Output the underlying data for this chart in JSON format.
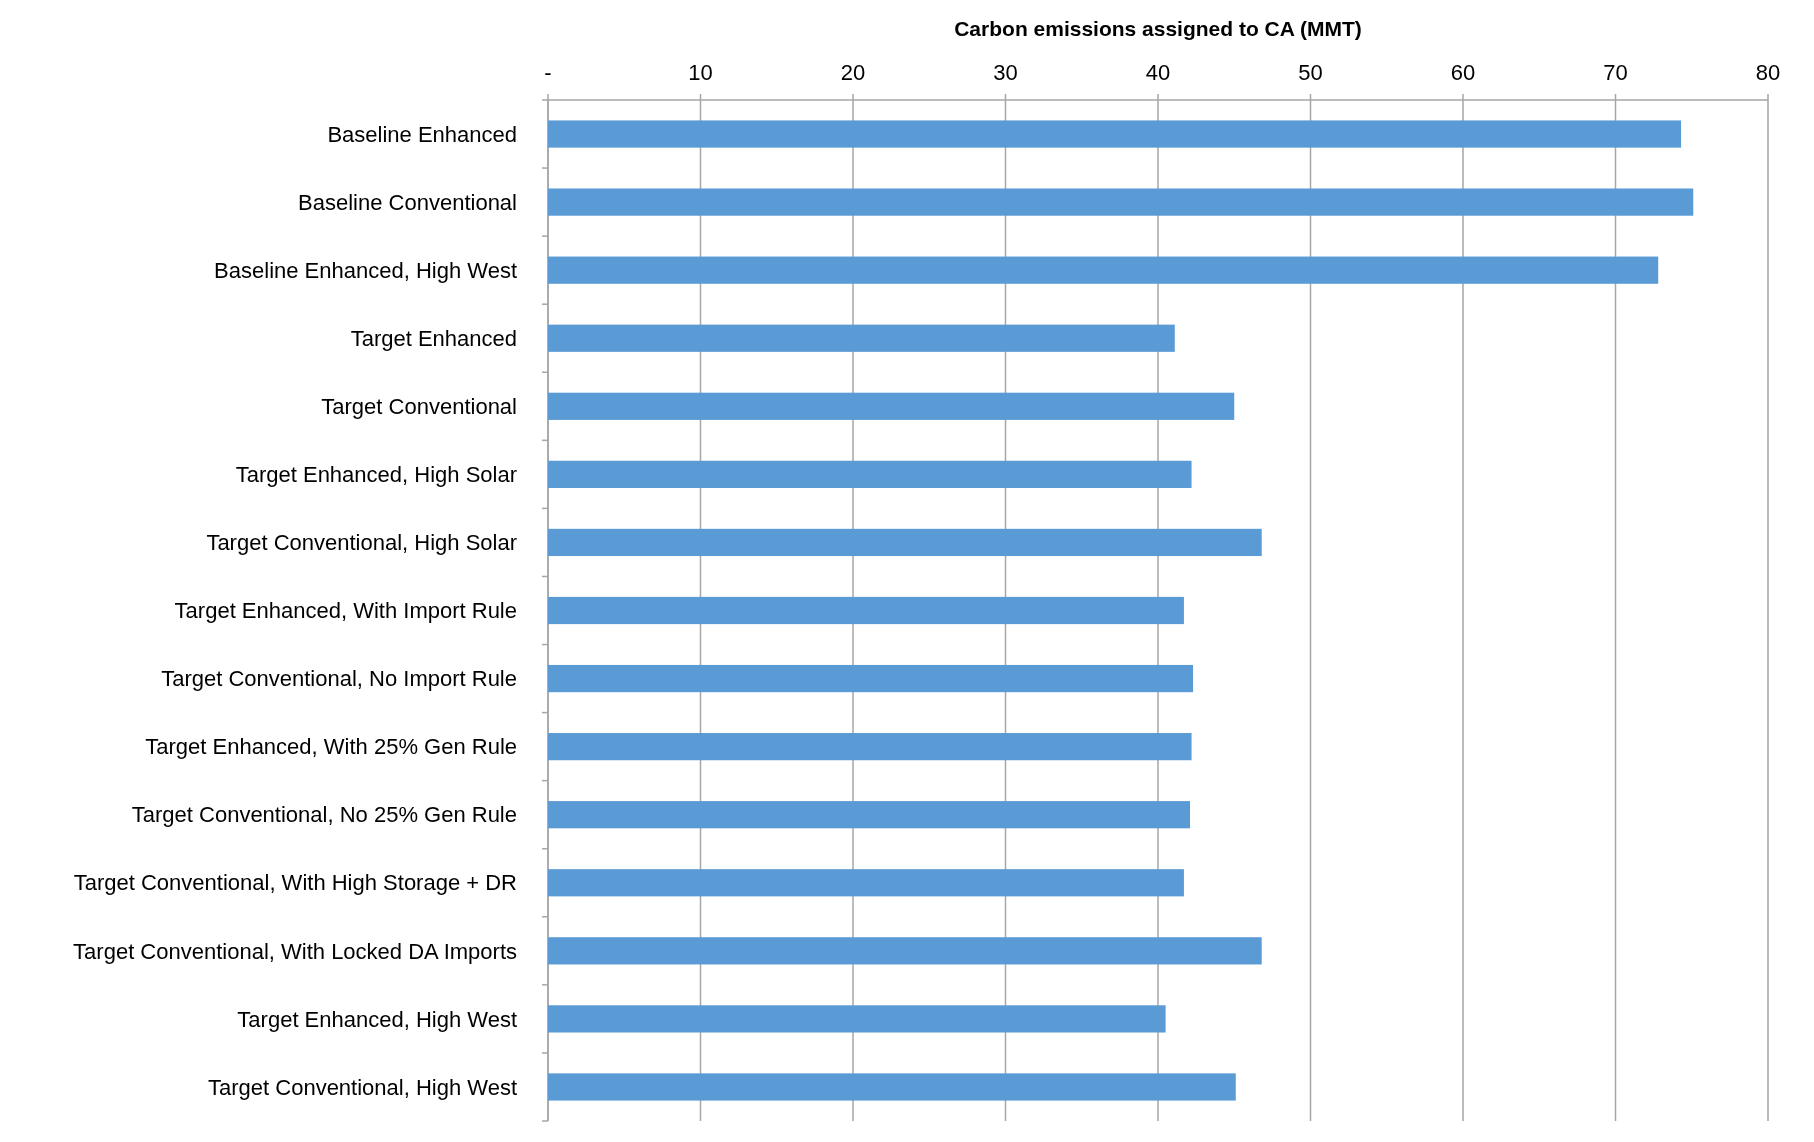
{
  "chart_data": {
    "type": "bar",
    "orientation": "horizontal",
    "xlabel": "Carbon emissions assigned to CA (MMT)",
    "categories": [
      "Baseline Enhanced",
      "Baseline Conventional",
      "Baseline Enhanced, High West",
      "Target Enhanced",
      "Target Conventional",
      "Target Enhanced, High Solar",
      "Target Conventional, High Solar",
      "Target Enhanced, With Import Rule",
      "Target Conventional, No Import Rule",
      "Target Enhanced, With 25% Gen Rule",
      "Target Conventional, No 25% Gen Rule",
      "Target Conventional, With High Storage + DR",
      "Target Conventional, With Locked DA Imports",
      "Target Enhanced, High West",
      "Target Conventional, High West"
    ],
    "values": [
      74.3,
      75.1,
      72.8,
      41.1,
      45.0,
      42.2,
      46.8,
      41.7,
      42.3,
      42.2,
      42.1,
      41.7,
      46.8,
      40.5,
      45.1
    ],
    "color": "#5b9bd5",
    "xlim": [
      0,
      80
    ],
    "xticks": [
      {
        "value": 0,
        "label": "-"
      },
      10,
      20,
      30,
      40,
      50,
      60,
      70,
      80
    ],
    "grid": "x"
  }
}
